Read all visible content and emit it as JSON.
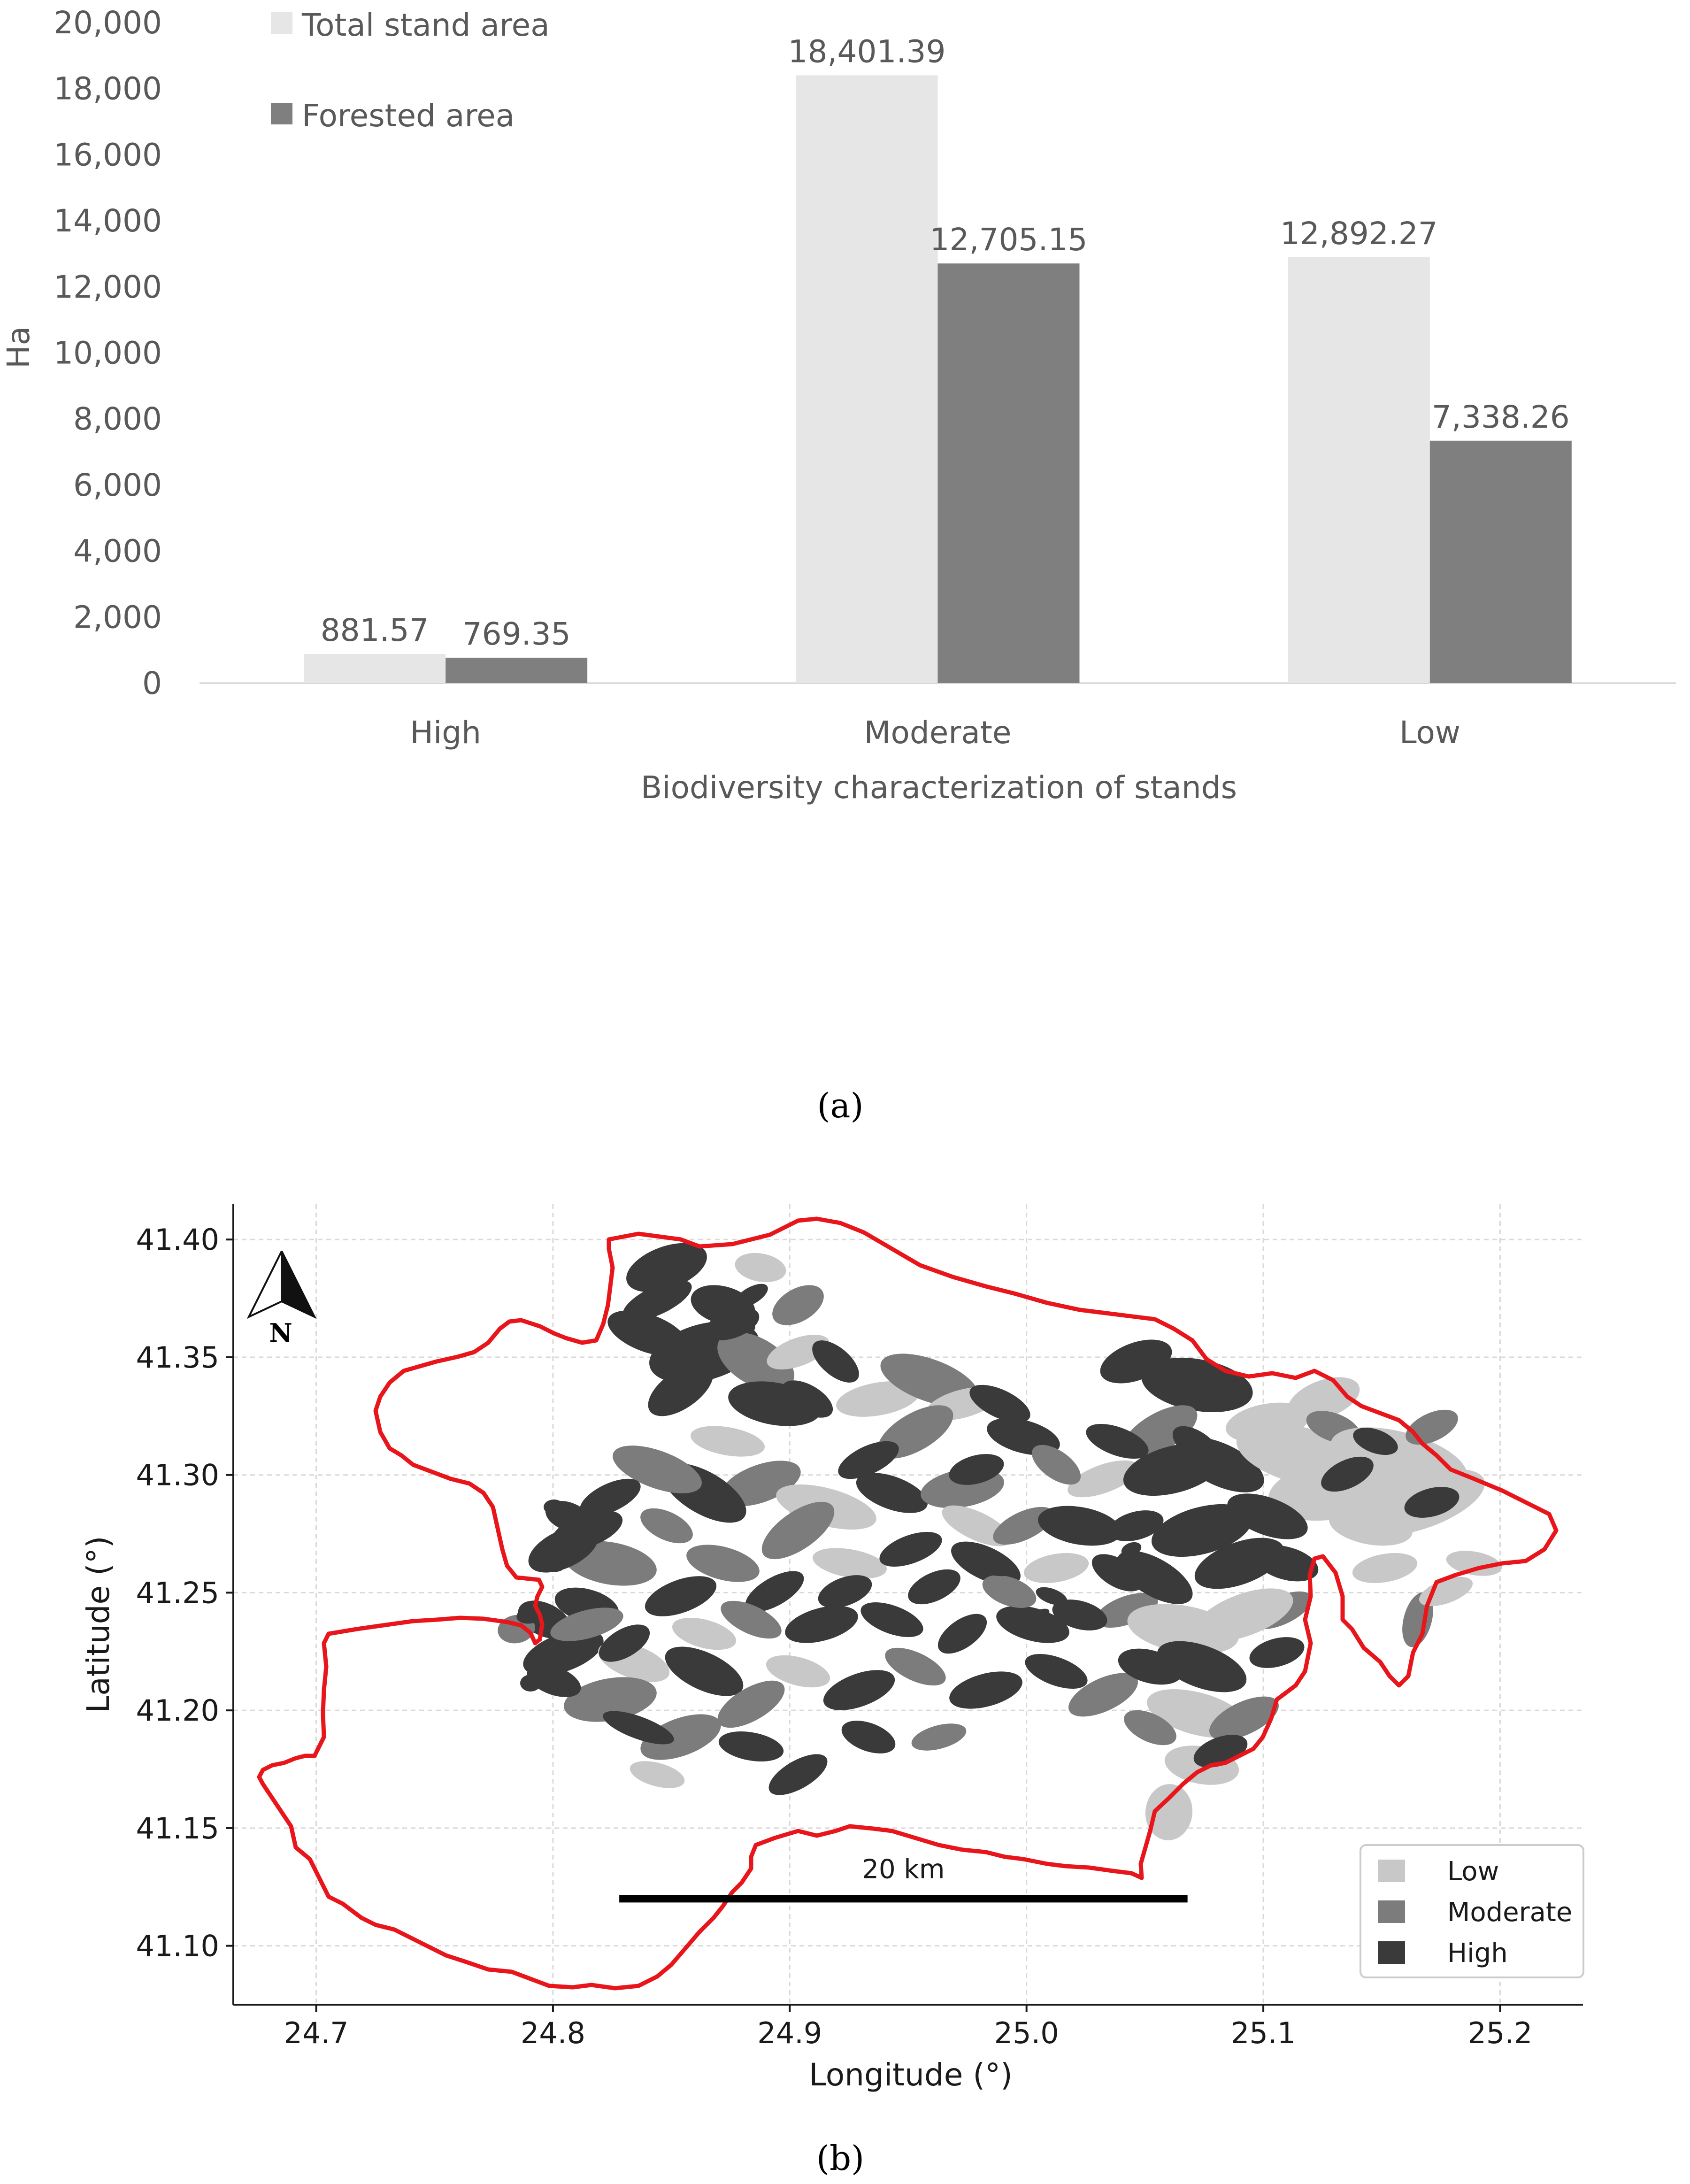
{
  "panel_a_caption": "(a)",
  "panel_b_caption": "(b)",
  "chart_data": [
    {
      "type": "bar",
      "ylabel": "Ha",
      "xlabel": "Biodiversity characterization of stands",
      "categories": [
        "High",
        "Moderate",
        "Low"
      ],
      "ylim": [
        0,
        20000
      ],
      "yticks": [
        0,
        2000,
        4000,
        6000,
        8000,
        10000,
        12000,
        14000,
        16000,
        18000,
        20000
      ],
      "ytick_labels": [
        "0",
        "2,000",
        "4,000",
        "6,000",
        "8,000",
        "10,000",
        "12,000",
        "14,000",
        "16,000",
        "18,000",
        "20,000"
      ],
      "grid": false,
      "legend_position": "top-left",
      "series": [
        {
          "name": "Total stand area",
          "color": "#e6e6e6",
          "values": [
            881.57,
            18401.39,
            12892.27
          ],
          "labels": [
            "881.57",
            "18,401.39",
            "12,892.27"
          ]
        },
        {
          "name": "Forested area",
          "color": "#7f7f7f",
          "values": [
            769.35,
            12705.15,
            7338.26
          ],
          "labels": [
            "769.35",
            "12,705.15",
            "7,338.26"
          ]
        }
      ]
    },
    {
      "type": "map",
      "xlabel": "Longitude (°)",
      "ylabel": "Latitude (°)",
      "xlim": [
        24.665,
        25.235
      ],
      "ylim": [
        41.075,
        41.415
      ],
      "xticks": [
        24.7,
        24.8,
        24.9,
        25.0,
        25.1,
        25.2
      ],
      "xtick_labels": [
        "24.7",
        "24.8",
        "24.9",
        "25.0",
        "25.1",
        "25.2"
      ],
      "yticks": [
        41.1,
        41.15,
        41.2,
        41.25,
        41.3,
        41.35,
        41.4
      ],
      "ytick_labels": [
        "41.10",
        "41.15",
        "41.20",
        "41.25",
        "41.30",
        "41.35",
        "41.40"
      ],
      "grid": true,
      "boundary_color": "#e8161b",
      "north_label": "N",
      "scale_bar": {
        "label": "20 km",
        "lon_start": 24.828,
        "lon_end": 25.068,
        "lat": 41.12
      },
      "legend_position": "bottom-right",
      "legend": [
        {
          "name": "Low",
          "color": "#c8c8c8"
        },
        {
          "name": "Moderate",
          "color": "#7c7c7c"
        },
        {
          "name": "High",
          "color": "#3a3a3a"
        }
      ]
    }
  ]
}
